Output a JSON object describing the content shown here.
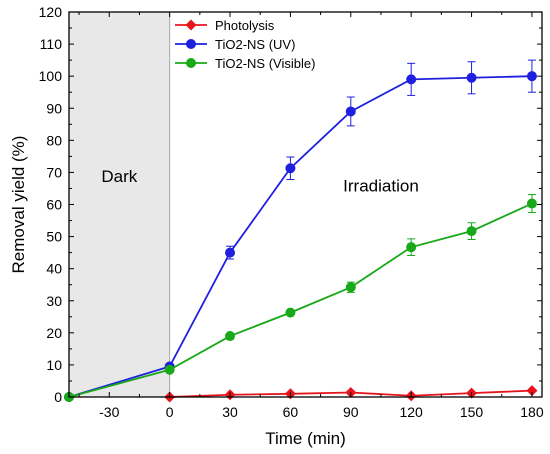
{
  "chart_data": {
    "type": "line",
    "xlabel": "Time (min)",
    "ylabel": "Removal yield (%)",
    "xlim": [
      -50,
      185
    ],
    "ylim": [
      0,
      120
    ],
    "xticks": [
      -30,
      0,
      30,
      60,
      90,
      120,
      150,
      180
    ],
    "yticks": [
      0,
      10,
      20,
      30,
      40,
      50,
      60,
      70,
      80,
      90,
      100,
      110,
      120
    ],
    "grid": false,
    "legend_position": "top-left",
    "shaded_region": {
      "x_from": -50,
      "x_to": 0,
      "color": "#e8e8e8"
    },
    "annotations": [
      {
        "text": "Dark",
        "x": -25,
        "y": 67
      },
      {
        "text": "Irradiation",
        "x": 105,
        "y": 64
      }
    ],
    "series": [
      {
        "name": "Photolysis",
        "color": "#e8141c",
        "marker": "diamond",
        "x": [
          0,
          30,
          60,
          90,
          120,
          150,
          180
        ],
        "y": [
          0,
          0.7,
          1.0,
          1.4,
          0.4,
          1.2,
          2.0
        ],
        "error": [
          0,
          0,
          0,
          0,
          0,
          0,
          0
        ]
      },
      {
        "name": "TiO2-NS (UV)",
        "color": "#1f1fe0",
        "marker": "circle",
        "x": [
          -50,
          0,
          30,
          60,
          90,
          120,
          150,
          180
        ],
        "y": [
          0,
          9.5,
          45.0,
          71.3,
          89.0,
          99.0,
          99.5,
          100.0
        ],
        "error": [
          0,
          0,
          2.0,
          3.5,
          4.5,
          5.0,
          5.0,
          5.0
        ]
      },
      {
        "name": "TiO2-NS (Visible)",
        "color": "#18a818",
        "marker": "circle",
        "x": [
          -50,
          0,
          30,
          60,
          90,
          120,
          150,
          180
        ],
        "y": [
          0,
          8.5,
          19.0,
          26.3,
          34.2,
          46.7,
          51.7,
          60.3
        ],
        "error": [
          0,
          0,
          0,
          0,
          1.6,
          2.6,
          2.6,
          2.8
        ]
      }
    ]
  }
}
